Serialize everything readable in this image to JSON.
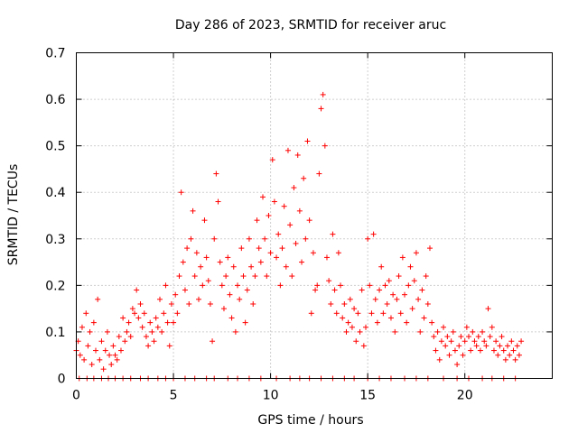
{
  "chart_data": {
    "type": "scatter",
    "title": "Day 286 of 2023, SRMTID for receiver aruc",
    "xlabel": "GPS time / hours",
    "ylabel": "SRMTID / TECUs",
    "xlim": [
      0,
      24.5
    ],
    "ylim": [
      0,
      0.7
    ],
    "xticks": [
      0,
      5,
      10,
      15,
      20
    ],
    "xtick_labels": [
      "0",
      "5",
      "10",
      "15",
      "20"
    ],
    "yticks": [
      0,
      0.1,
      0.2,
      0.3,
      0.4,
      0.5,
      0.6,
      0.7
    ],
    "ytick_labels": [
      "0",
      "0.1",
      "0.2",
      "0.3",
      "0.4",
      "0.5",
      "0.6",
      "0.7"
    ],
    "grid": true,
    "marker": "+",
    "color": "#ff0000",
    "series": [
      {
        "name": "SRMTID",
        "points": [
          [
            0.0,
            0.06
          ],
          [
            0.1,
            0.08
          ],
          [
            0.2,
            0.05
          ],
          [
            0.3,
            0.11
          ],
          [
            0.4,
            0.04
          ],
          [
            0.5,
            0.14
          ],
          [
            0.6,
            0.07
          ],
          [
            0.7,
            0.1
          ],
          [
            0.8,
            0.03
          ],
          [
            0.9,
            0.12
          ],
          [
            1.0,
            0.06
          ],
          [
            1.1,
            0.17
          ],
          [
            1.2,
            0.04
          ],
          [
            1.3,
            0.08
          ],
          [
            1.4,
            0.02
          ],
          [
            1.5,
            0.06
          ],
          [
            1.6,
            0.1
          ],
          [
            1.7,
            0.05
          ],
          [
            1.8,
            0.03
          ],
          [
            1.9,
            0.07
          ],
          [
            2.0,
            0.05
          ],
          [
            2.1,
            0.04
          ],
          [
            2.2,
            0.09
          ],
          [
            2.3,
            0.06
          ],
          [
            2.4,
            0.13
          ],
          [
            2.5,
            0.08
          ],
          [
            2.6,
            0.1
          ],
          [
            2.7,
            0.12
          ],
          [
            2.8,
            0.09
          ],
          [
            2.9,
            0.15
          ],
          [
            3.0,
            0.14
          ],
          [
            3.1,
            0.19
          ],
          [
            3.2,
            0.13
          ],
          [
            3.3,
            0.16
          ],
          [
            3.4,
            0.11
          ],
          [
            3.5,
            0.14
          ],
          [
            3.6,
            0.09
          ],
          [
            3.7,
            0.07
          ],
          [
            3.8,
            0.12
          ],
          [
            3.9,
            0.1
          ],
          [
            4.0,
            0.08
          ],
          [
            4.1,
            0.13
          ],
          [
            4.2,
            0.11
          ],
          [
            4.3,
            0.17
          ],
          [
            4.4,
            0.1
          ],
          [
            4.5,
            0.14
          ],
          [
            4.6,
            0.2
          ],
          [
            4.7,
            0.12
          ],
          [
            4.8,
            0.07
          ],
          [
            4.9,
            0.16
          ],
          [
            5.0,
            0.12
          ],
          [
            5.1,
            0.18
          ],
          [
            5.2,
            0.14
          ],
          [
            5.3,
            0.22
          ],
          [
            5.4,
            0.4
          ],
          [
            5.5,
            0.25
          ],
          [
            5.6,
            0.19
          ],
          [
            5.7,
            0.28
          ],
          [
            5.8,
            0.16
          ],
          [
            5.9,
            0.3
          ],
          [
            6.0,
            0.36
          ],
          [
            6.1,
            0.22
          ],
          [
            6.2,
            0.27
          ],
          [
            6.3,
            0.17
          ],
          [
            6.4,
            0.24
          ],
          [
            6.5,
            0.2
          ],
          [
            6.6,
            0.34
          ],
          [
            6.7,
            0.26
          ],
          [
            6.8,
            0.21
          ],
          [
            6.9,
            0.16
          ],
          [
            7.0,
            0.08
          ],
          [
            7.1,
            0.3
          ],
          [
            7.2,
            0.44
          ],
          [
            7.3,
            0.38
          ],
          [
            7.4,
            0.25
          ],
          [
            7.5,
            0.2
          ],
          [
            7.6,
            0.15
          ],
          [
            7.7,
            0.22
          ],
          [
            7.8,
            0.26
          ],
          [
            7.9,
            0.18
          ],
          [
            8.0,
            0.13
          ],
          [
            8.1,
            0.24
          ],
          [
            8.2,
            0.1
          ],
          [
            8.3,
            0.2
          ],
          [
            8.4,
            0.17
          ],
          [
            8.5,
            0.28
          ],
          [
            8.6,
            0.22
          ],
          [
            8.7,
            0.12
          ],
          [
            8.8,
            0.19
          ],
          [
            8.9,
            0.3
          ],
          [
            9.0,
            0.24
          ],
          [
            9.1,
            0.16
          ],
          [
            9.2,
            0.22
          ],
          [
            9.3,
            0.34
          ],
          [
            9.4,
            0.28
          ],
          [
            9.5,
            0.25
          ],
          [
            9.6,
            0.39
          ],
          [
            9.7,
            0.3
          ],
          [
            9.8,
            0.22
          ],
          [
            9.9,
            0.35
          ],
          [
            10.0,
            0.27
          ],
          [
            10.1,
            0.47
          ],
          [
            10.2,
            0.38
          ],
          [
            10.3,
            0.26
          ],
          [
            10.4,
            0.31
          ],
          [
            10.5,
            0.2
          ],
          [
            10.6,
            0.28
          ],
          [
            10.7,
            0.37
          ],
          [
            10.8,
            0.24
          ],
          [
            10.9,
            0.49
          ],
          [
            11.0,
            0.33
          ],
          [
            11.1,
            0.22
          ],
          [
            11.2,
            0.41
          ],
          [
            11.3,
            0.29
          ],
          [
            11.4,
            0.48
          ],
          [
            11.5,
            0.36
          ],
          [
            11.6,
            0.25
          ],
          [
            11.7,
            0.43
          ],
          [
            11.8,
            0.3
          ],
          [
            11.9,
            0.51
          ],
          [
            12.0,
            0.34
          ],
          [
            12.1,
            0.14
          ],
          [
            12.2,
            0.27
          ],
          [
            12.3,
            0.19
          ],
          [
            12.4,
            0.2
          ],
          [
            12.5,
            0.44
          ],
          [
            12.6,
            0.58
          ],
          [
            12.7,
            0.61
          ],
          [
            12.8,
            0.5
          ],
          [
            12.9,
            0.26
          ],
          [
            13.0,
            0.21
          ],
          [
            13.1,
            0.16
          ],
          [
            13.2,
            0.31
          ],
          [
            13.3,
            0.19
          ],
          [
            13.4,
            0.14
          ],
          [
            13.5,
            0.27
          ],
          [
            13.6,
            0.2
          ],
          [
            13.7,
            0.13
          ],
          [
            13.8,
            0.16
          ],
          [
            13.9,
            0.1
          ],
          [
            14.0,
            0.12
          ],
          [
            14.1,
            0.17
          ],
          [
            14.2,
            0.11
          ],
          [
            14.3,
            0.15
          ],
          [
            14.4,
            0.08
          ],
          [
            14.5,
            0.14
          ],
          [
            14.6,
            0.1
          ],
          [
            14.7,
            0.19
          ],
          [
            14.8,
            0.07
          ],
          [
            14.9,
            0.11
          ],
          [
            15.0,
            0.3
          ],
          [
            15.1,
            0.2
          ],
          [
            15.2,
            0.14
          ],
          [
            15.3,
            0.31
          ],
          [
            15.4,
            0.17
          ],
          [
            15.5,
            0.12
          ],
          [
            15.6,
            0.19
          ],
          [
            15.7,
            0.24
          ],
          [
            15.8,
            0.14
          ],
          [
            15.9,
            0.2
          ],
          [
            16.0,
            0.16
          ],
          [
            16.1,
            0.21
          ],
          [
            16.2,
            0.13
          ],
          [
            16.3,
            0.18
          ],
          [
            16.4,
            0.1
          ],
          [
            16.5,
            0.17
          ],
          [
            16.6,
            0.22
          ],
          [
            16.7,
            0.14
          ],
          [
            16.8,
            0.26
          ],
          [
            16.9,
            0.18
          ],
          [
            17.0,
            0.12
          ],
          [
            17.1,
            0.2
          ],
          [
            17.2,
            0.24
          ],
          [
            17.3,
            0.15
          ],
          [
            17.4,
            0.21
          ],
          [
            17.5,
            0.27
          ],
          [
            17.6,
            0.17
          ],
          [
            17.7,
            0.1
          ],
          [
            17.8,
            0.19
          ],
          [
            17.9,
            0.13
          ],
          [
            18.0,
            0.22
          ],
          [
            18.1,
            0.16
          ],
          [
            18.2,
            0.28
          ],
          [
            18.3,
            0.12
          ],
          [
            18.4,
            0.09
          ],
          [
            18.5,
            0.06
          ],
          [
            18.6,
            0.1
          ],
          [
            18.7,
            0.04
          ],
          [
            18.8,
            0.08
          ],
          [
            18.9,
            0.11
          ],
          [
            19.0,
            0.07
          ],
          [
            19.1,
            0.09
          ],
          [
            19.2,
            0.05
          ],
          [
            19.3,
            0.08
          ],
          [
            19.4,
            0.1
          ],
          [
            19.5,
            0.06
          ],
          [
            19.6,
            0.03
          ],
          [
            19.7,
            0.07
          ],
          [
            19.8,
            0.09
          ],
          [
            19.9,
            0.05
          ],
          [
            20.0,
            0.08
          ],
          [
            20.1,
            0.11
          ],
          [
            20.2,
            0.09
          ],
          [
            20.3,
            0.06
          ],
          [
            20.4,
            0.1
          ],
          [
            20.5,
            0.08
          ],
          [
            20.6,
            0.07
          ],
          [
            20.7,
            0.09
          ],
          [
            20.8,
            0.06
          ],
          [
            20.9,
            0.1
          ],
          [
            21.0,
            0.08
          ],
          [
            21.1,
            0.07
          ],
          [
            21.2,
            0.15
          ],
          [
            21.3,
            0.09
          ],
          [
            21.4,
            0.11
          ],
          [
            21.5,
            0.06
          ],
          [
            21.6,
            0.08
          ],
          [
            21.7,
            0.05
          ],
          [
            21.8,
            0.07
          ],
          [
            21.9,
            0.09
          ],
          [
            22.0,
            0.06
          ],
          [
            22.1,
            0.04
          ],
          [
            22.2,
            0.07
          ],
          [
            22.3,
            0.05
          ],
          [
            22.4,
            0.08
          ],
          [
            22.5,
            0.06
          ],
          [
            22.6,
            0.04
          ],
          [
            22.7,
            0.07
          ],
          [
            22.8,
            0.05
          ],
          [
            22.9,
            0.08
          ],
          [
            0.15,
            0.0
          ],
          [
            0.55,
            0.0
          ],
          [
            0.9,
            0.0
          ],
          [
            1.3,
            0.0
          ],
          [
            1.65,
            0.0
          ],
          [
            2.0,
            0.0
          ],
          [
            2.4,
            0.0
          ],
          [
            2.8,
            0.0
          ],
          [
            3.3,
            0.0
          ],
          [
            3.7,
            0.0
          ],
          [
            4.2,
            0.0
          ],
          [
            4.6,
            0.0
          ],
          [
            5.0,
            0.0
          ],
          [
            5.6,
            0.0
          ],
          [
            6.1,
            0.0
          ],
          [
            6.7,
            0.0
          ],
          [
            7.1,
            0.0
          ],
          [
            7.8,
            0.0
          ],
          [
            8.3,
            0.0
          ],
          [
            8.9,
            0.0
          ],
          [
            9.5,
            0.0
          ],
          [
            10.3,
            0.0
          ],
          [
            11.0,
            0.0
          ],
          [
            11.5,
            0.0
          ],
          [
            12.0,
            0.0
          ],
          [
            12.6,
            0.0
          ],
          [
            13.2,
            0.0
          ],
          [
            13.8,
            0.0
          ],
          [
            14.3,
            0.0
          ],
          [
            15.0,
            0.0
          ],
          [
            15.6,
            0.0
          ],
          [
            16.2,
            0.0
          ],
          [
            16.9,
            0.0
          ],
          [
            17.5,
            0.0
          ],
          [
            18.1,
            0.0
          ],
          [
            18.9,
            0.0
          ],
          [
            19.6,
            0.0
          ],
          [
            20.2,
            0.0
          ],
          [
            20.9,
            0.0
          ],
          [
            21.4,
            0.0
          ],
          [
            22.0,
            0.0
          ],
          [
            22.6,
            0.0
          ]
        ]
      }
    ]
  }
}
